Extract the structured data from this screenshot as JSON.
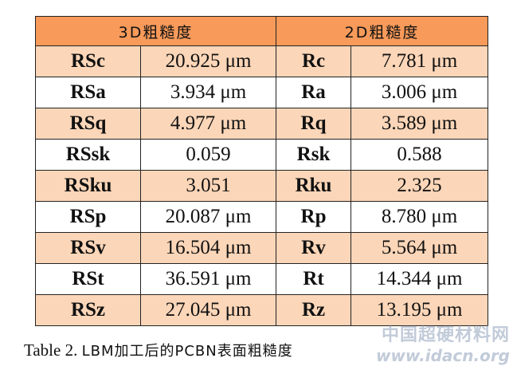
{
  "table": {
    "header": [
      "3D粗糙度",
      "2D粗糙度"
    ],
    "rows": [
      [
        "RSc",
        "20.925 μm",
        "Rc",
        "7.781 μm"
      ],
      [
        "RSa",
        "3.934 μm",
        "Ra",
        "3.006 μm"
      ],
      [
        "RSq",
        "4.977 μm",
        "Rq",
        "3.589 μm"
      ],
      [
        "RSsk",
        "0.059",
        "Rsk",
        "0.588"
      ],
      [
        "RSku",
        "3.051",
        "Rku",
        "2.325"
      ],
      [
        "RSp",
        "20.087 μm",
        "Rp",
        "8.780 μm"
      ],
      [
        "RSv",
        "16.504 μm",
        "Rv",
        "5.564 μm"
      ],
      [
        "RSt",
        "36.591 μm",
        "Rt",
        "14.344 μm"
      ],
      [
        "RSz",
        "27.045 μm",
        "Rz",
        "13.195 μm"
      ]
    ]
  },
  "caption": {
    "label": "Table 2.",
    "text": "LBM加工后的PCBN表面粗糙度"
  },
  "watermark": {
    "name": "中国超硬材料网",
    "url": "www.idacn.org"
  }
}
